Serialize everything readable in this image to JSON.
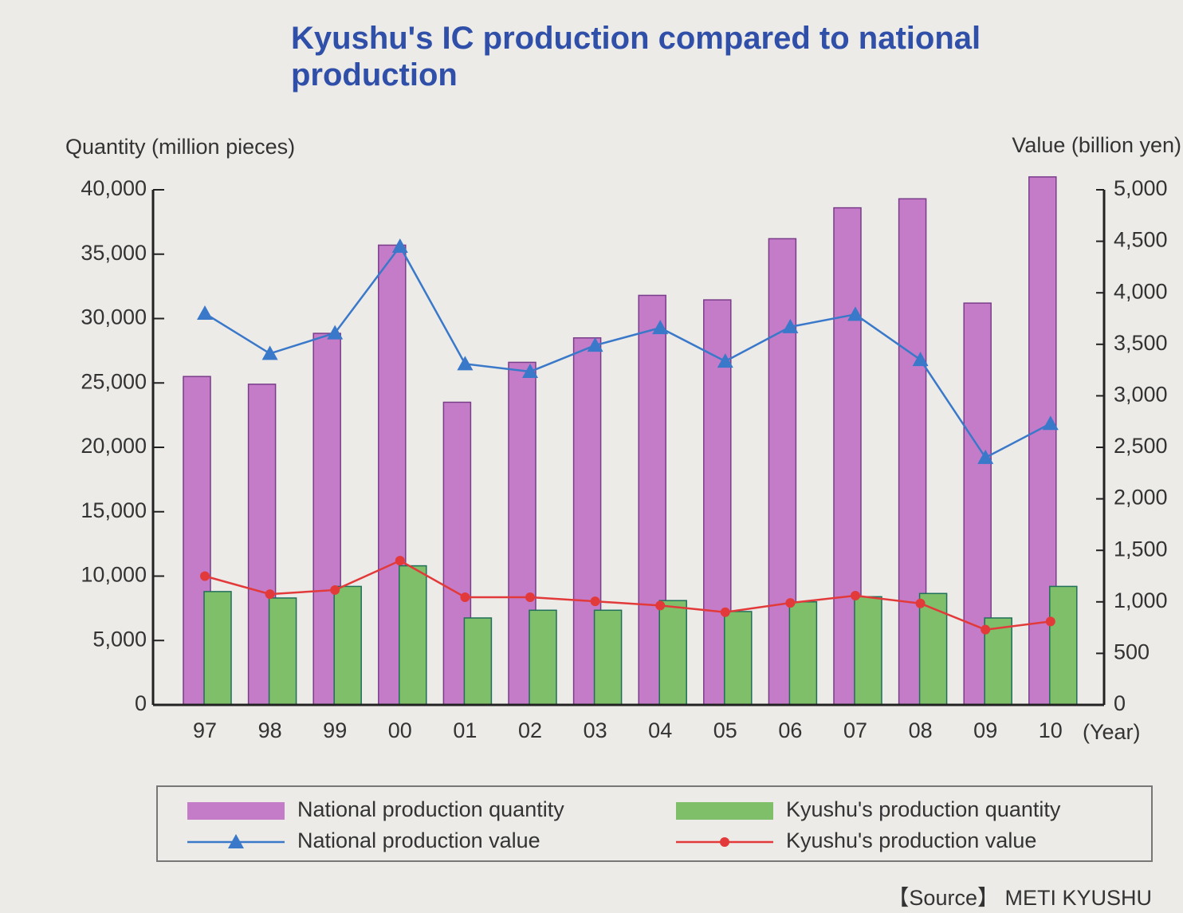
{
  "chart_data": {
    "type": "bar_line",
    "title": "Kyushu's IC production compared to national production",
    "ylabel": "Quantity (million pieces)",
    "y2label": "Value (billion yen)",
    "xlabel": "(Year)",
    "source": "【Source】 METI KYUSHU",
    "categories": [
      "97",
      "98",
      "99",
      "00",
      "01",
      "02",
      "03",
      "04",
      "05",
      "06",
      "07",
      "08",
      "09",
      "10"
    ],
    "series": [
      {
        "name": "National production quantity",
        "kind": "bar",
        "color": "#c47cc8",
        "values": [
          25500,
          24900,
          28850,
          35700,
          23500,
          26600,
          28500,
          31800,
          31450,
          36200,
          38600,
          39300,
          31200,
          41000
        ]
      },
      {
        "name": "Kyushu's production quantity",
        "kind": "bar",
        "color": "#7fbf6a",
        "values": [
          8800,
          8300,
          9200,
          10800,
          6750,
          7350,
          7350,
          8100,
          7250,
          8000,
          8400,
          8650,
          6750,
          9200
        ]
      },
      {
        "name": "National production value",
        "kind": "line",
        "marker": "triangle",
        "axis": "y2",
        "color": "#3a78c9",
        "values": [
          3800,
          3410,
          3610,
          4450,
          3310,
          3235,
          3490,
          3660,
          3335,
          3670,
          3790,
          3350,
          2400,
          2730
        ]
      },
      {
        "name": "Kyushu's production value",
        "kind": "line",
        "marker": "circle",
        "axis": "y2",
        "color": "#e23a3a",
        "values": [
          1250,
          1075,
          1115,
          1400,
          1045,
          1045,
          1005,
          965,
          900,
          990,
          1060,
          985,
          730,
          810
        ]
      }
    ],
    "ylim": [
      0,
      40000
    ],
    "yticks": [
      0,
      {
        "value": 5000,
        "label": "5,000"
      },
      {
        "value": 10000,
        "label": "10,000"
      },
      {
        "value": 15000,
        "label": "15,000"
      },
      {
        "value": 20000,
        "label": "20,000"
      },
      {
        "value": 25000,
        "label": "25,000"
      },
      {
        "value": 30000,
        "label": "30,000"
      },
      {
        "value": 35000,
        "label": "35,000"
      },
      {
        "value": 40000,
        "label": "40,000"
      }
    ],
    "y2lim": [
      0,
      5000
    ],
    "y2ticks": [
      0,
      500,
      {
        "value": 1000,
        "label": "1,000"
      },
      {
        "value": 1500,
        "label": "1,500"
      },
      {
        "value": 2000,
        "label": "2,000"
      },
      {
        "value": 2500,
        "label": "2,500"
      },
      {
        "value": 3000,
        "label": "3,000"
      },
      {
        "value": 3500,
        "label": "3,500"
      },
      {
        "value": 4000,
        "label": "4,000"
      },
      {
        "value": 4500,
        "label": "4,500"
      },
      {
        "value": 5000,
        "label": "5,000"
      }
    ]
  }
}
